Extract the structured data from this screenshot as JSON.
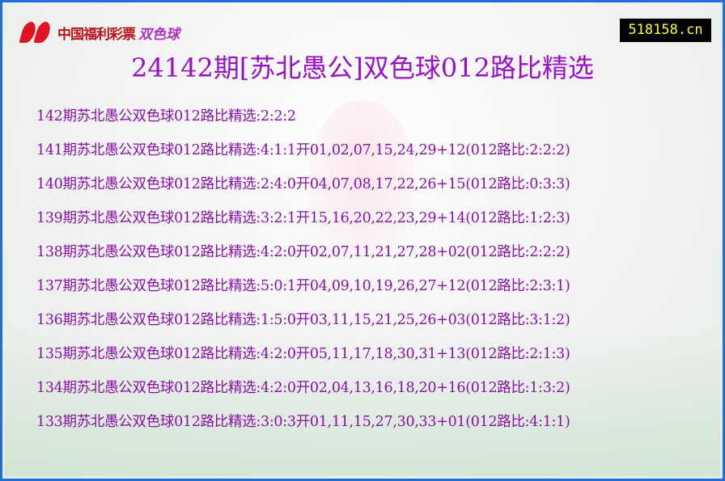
{
  "logo": {
    "text_main": "中国福利彩票",
    "text_accent": "双色球"
  },
  "site_badge": "518158.cn",
  "title": "24142期[苏北愚公]双色球012路比精选",
  "rows": [
    "142期苏北愚公双色球012路比精选:2:2:2",
    "141期苏北愚公双色球012路比精选:4:1:1开01,02,07,15,24,29+12(012路比:2:2:2)",
    "140期苏北愚公双色球012路比精选:2:4:0开04,07,08,17,22,26+15(012路比:0:3:3)",
    "139期苏北愚公双色球012路比精选:3:2:1开15,16,20,22,23,29+14(012路比:1:2:3)",
    "138期苏北愚公双色球012路比精选:4:2:0开02,07,11,21,27,28+02(012路比:2:2:2)",
    "137期苏北愚公双色球012路比精选:5:0:1开04,09,10,19,26,27+12(012路比:2:3:1)",
    "136期苏北愚公双色球012路比精选:1:5:0开03,11,15,21,25,26+03(012路比:3:1:2)",
    "135期苏北愚公双色球012路比精选:4:2:0开05,11,17,18,30,31+13(012路比:2:1:3)",
    "134期苏北愚公双色球012路比精选:4:2:0开02,04,13,16,18,20+16(012路比:1:3:2)",
    "133期苏北愚公双色球012路比精选:3:0:3开01,11,15,27,30,33+01(012路比:4:1:1)"
  ]
}
